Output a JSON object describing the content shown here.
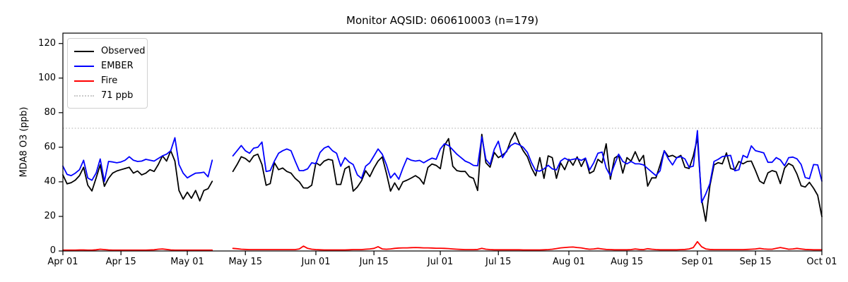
{
  "figure": {
    "title": "Monitor AQSID: 060610003 (n=179)",
    "background": "#ffffff"
  },
  "axes": {
    "ylabel": "MDA8 O3 (ppb)",
    "y_ticks": [
      0,
      20,
      40,
      60,
      80,
      100,
      120
    ],
    "x_ticks": [
      {
        "label": "Apr 01",
        "day": 0
      },
      {
        "label": "Apr 15",
        "day": 14
      },
      {
        "label": "May 01",
        "day": 30
      },
      {
        "label": "May 15",
        "day": 44
      },
      {
        "label": "Jun 01",
        "day": 61
      },
      {
        "label": "Jun 15",
        "day": 75
      },
      {
        "label": "Jul 01",
        "day": 91
      },
      {
        "label": "Jul 15",
        "day": 105
      },
      {
        "label": "Aug 01",
        "day": 122
      },
      {
        "label": "Aug 15",
        "day": 136
      },
      {
        "label": "Sep 01",
        "day": 153
      },
      {
        "label": "Sep 15",
        "day": 167
      },
      {
        "label": "Oct 01",
        "day": 183
      }
    ],
    "spine_color": "#000000"
  },
  "legend": {
    "items": [
      {
        "label": "Observed",
        "color": "#000000",
        "style": "solid"
      },
      {
        "label": "EMBER",
        "color": "#0000ff",
        "style": "solid"
      },
      {
        "label": "Fire",
        "color": "#ff0000",
        "style": "solid"
      },
      {
        "label": "71 ppb",
        "color": "#c9c9c9",
        "style": "dotted"
      }
    ]
  },
  "chart_data": {
    "type": "line",
    "title": "Monitor AQSID: 060610003 (n=179)",
    "xlabel": "",
    "ylabel": "MDA8 O3 (ppb)",
    "xlim": [
      0,
      183
    ],
    "ylim": [
      0,
      126
    ],
    "grid": false,
    "legend_position": "upper left",
    "x_start": "Apr 01",
    "x_end": "Oct 01",
    "data_gap_days": [
      37,
      38,
      39,
      40
    ],
    "threshold": {
      "label": "71 ppb",
      "value": 71,
      "color": "#c9c9c9",
      "style": "dotted"
    },
    "series": [
      {
        "name": "Observed",
        "color": "#000000",
        "values": [
          44,
          38.8,
          39.5,
          41,
          43.6,
          48.4,
          38.1,
          34.7,
          42.2,
          49.8,
          37.4,
          42,
          45,
          46.3,
          47,
          47.7,
          48.4,
          45,
          46.3,
          44,
          45,
          47,
          46,
          50,
          55,
          52,
          58,
          52,
          35,
          30,
          34,
          30.5,
          35,
          29,
          35,
          36,
          40.3,
          null,
          null,
          null,
          null,
          46,
          50,
          54.5,
          53.5,
          51.5,
          55,
          56,
          50,
          38,
          39,
          51,
          47,
          48,
          46,
          45,
          42,
          40,
          36.5,
          36.4,
          38,
          51,
          49.5,
          52,
          53,
          52.5,
          38.5,
          38.5,
          47.5,
          49,
          34.6,
          37,
          40.6,
          46.4,
          43,
          48,
          52,
          54.4,
          45,
          34.6,
          39.4,
          35.3,
          40,
          41,
          42.2,
          43.6,
          42,
          38.7,
          48.3,
          50.3,
          49.5,
          47.6,
          61,
          65,
          49,
          46.5,
          46,
          46,
          43,
          42,
          35,
          67.5,
          51,
          48.5,
          57,
          54,
          55.5,
          57.5,
          64,
          68.5,
          62.5,
          58,
          54.5,
          48,
          43.5,
          54,
          42,
          55,
          54,
          42,
          51,
          47,
          53,
          49.6,
          54.4,
          48.9,
          53.7,
          44.9,
          46.2,
          53,
          51,
          62,
          41.5,
          53.7,
          55.3,
          45,
          54,
          52,
          57.4,
          51.8,
          55.3,
          37.5,
          42.3,
          42.3,
          49.8,
          58,
          54.6,
          55.3,
          53.9,
          55.3,
          48.4,
          47.7,
          55,
          65.5,
          30,
          17.2,
          37.5,
          49.8,
          51.1,
          50.4,
          56.7,
          47.7,
          47,
          51.8,
          50.4,
          51.8,
          52,
          46.5,
          40.4,
          39,
          45.2,
          46.5,
          45.8,
          39,
          47.9,
          50.6,
          49.3,
          44.5,
          37.7,
          37,
          39.7,
          36.3,
          32.2,
          19.9
        ]
      },
      {
        "name": "EMBER",
        "color": "#0000ff",
        "values": [
          49.1,
          44.3,
          43.6,
          45,
          47,
          52.5,
          42.2,
          40.9,
          45,
          53.2,
          40.2,
          51.8,
          51.5,
          51,
          51.5,
          52.5,
          54.5,
          52.5,
          51.8,
          52,
          53,
          52.5,
          52,
          53.5,
          55,
          56,
          58,
          65.5,
          50,
          45,
          42.3,
          43.7,
          45,
          45.2,
          45.6,
          42.9,
          52.5,
          null,
          null,
          null,
          null,
          55,
          58,
          61,
          58,
          56.5,
          59.5,
          60,
          63,
          46,
          46.5,
          52,
          56.5,
          58,
          59,
          58,
          52,
          46.5,
          46.5,
          47.5,
          51,
          50.5,
          57,
          59.5,
          60.6,
          58,
          56.5,
          49,
          54,
          51.5,
          50,
          44,
          42,
          49,
          51,
          55,
          59,
          56,
          50,
          42.2,
          45,
          41.5,
          48,
          53.7,
          52.5,
          52,
          52.4,
          51,
          52.5,
          53.7,
          53,
          59,
          62,
          61,
          58.5,
          56,
          54,
          52,
          51,
          49.5,
          49.3,
          66,
          53,
          50,
          58.8,
          63.5,
          54,
          58,
          61,
          62.4,
          61.5,
          60,
          57,
          51,
          46.5,
          46.2,
          47.5,
          49.6,
          47.5,
          46.9,
          52,
          53.7,
          52.5,
          53,
          53.5,
          52.4,
          53.7,
          46.9,
          51,
          56.5,
          57.2,
          48,
          43.5,
          50,
          56,
          51.8,
          50.4,
          51.8,
          50.4,
          50.4,
          49.8,
          47.7,
          45.6,
          43.6,
          46.4,
          58,
          53.2,
          49.8,
          53.9,
          54.6,
          53.2,
          48.4,
          49.1,
          69.6,
          28,
          33,
          38.9,
          51.8,
          53,
          54.6,
          55,
          55.3,
          46.4,
          47,
          55.3,
          54,
          60.8,
          58,
          57.4,
          56.7,
          51.3,
          51.3,
          54,
          52.7,
          49.3,
          54,
          54.3,
          53.3,
          50,
          42.5,
          41.8,
          50,
          49.8,
          40.4
        ]
      },
      {
        "name": "Fire",
        "color": "#ff0000",
        "values": [
          0.5,
          0.5,
          0.5,
          0.5,
          0.6,
          0.6,
          0.5,
          0.5,
          0.7,
          1,
          0.8,
          0.6,
          0.5,
          0.5,
          0.5,
          0.5,
          0.5,
          0.5,
          0.5,
          0.5,
          0.5,
          0.6,
          0.7,
          1,
          1.2,
          0.9,
          0.6,
          0.5,
          0.5,
          0.5,
          0.5,
          0.5,
          0.5,
          0.5,
          0.5,
          0.5,
          0.5,
          null,
          null,
          null,
          null,
          1.5,
          1.3,
          1,
          0.9,
          0.8,
          0.8,
          0.8,
          0.8,
          0.8,
          0.8,
          0.8,
          0.8,
          0.8,
          0.8,
          0.8,
          0.8,
          1.2,
          2.8,
          1.5,
          1,
          0.8,
          0.7,
          0.6,
          0.6,
          0.6,
          0.6,
          0.6,
          0.6,
          0.7,
          0.8,
          0.8,
          0.8,
          1,
          1.2,
          1.5,
          2.5,
          1.2,
          1,
          1.2,
          1.5,
          1.7,
          1.8,
          1.8,
          1.9,
          2,
          1.9,
          1.8,
          1.8,
          1.7,
          1.6,
          1.6,
          1.5,
          1.4,
          1.2,
          1,
          0.9,
          0.8,
          0.8,
          0.8,
          0.9,
          1.5,
          1,
          0.8,
          0.7,
          0.7,
          0.7,
          0.7,
          0.7,
          0.7,
          0.7,
          0.6,
          0.6,
          0.6,
          0.6,
          0.6,
          0.7,
          0.8,
          1,
          1.4,
          1.8,
          2,
          2.2,
          2.3,
          2,
          1.8,
          1.3,
          1,
          1.2,
          1.5,
          1.2,
          0.9,
          0.8,
          0.7,
          0.7,
          0.7,
          0.7,
          0.8,
          1.2,
          0.9,
          0.8,
          1.3,
          1,
          0.8,
          0.7,
          0.7,
          0.7,
          0.7,
          0.7,
          0.8,
          0.9,
          1.2,
          2,
          5.4,
          2.5,
          1.2,
          0.9,
          0.8,
          0.8,
          0.8,
          0.8,
          0.8,
          0.8,
          0.8,
          0.8,
          0.9,
          1,
          1.2,
          1.5,
          1.2,
          1,
          1,
          1.5,
          2,
          1.5,
          1,
          1.2,
          1.5,
          1.2,
          0.9,
          0.8,
          0.7,
          0.7,
          0.7
        ]
      }
    ]
  }
}
